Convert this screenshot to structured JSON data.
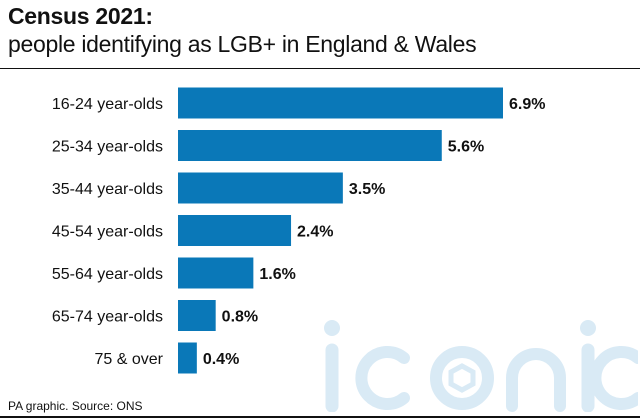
{
  "title": "Census 2021:",
  "subtitle": "people identifying as LGB+ in England & Wales",
  "source": "PA graphic. Source: ONS",
  "watermark": "iconic",
  "colors": {
    "bar": "#0a78b8",
    "text": "#111111",
    "watermark": "#d9eaf5"
  },
  "chart_data": {
    "type": "bar",
    "orientation": "horizontal",
    "categories": [
      "16-24 year-olds",
      "25-34 year-olds",
      "35-44 year-olds",
      "45-54 year-olds",
      "55-64 year-olds",
      "65-74 year-olds",
      "75 & over"
    ],
    "values": [
      6.9,
      5.6,
      3.5,
      2.4,
      1.6,
      0.8,
      0.4
    ],
    "data_labels": [
      "6.9%",
      "5.6%",
      "3.5%",
      "2.4%",
      "1.6%",
      "0.8%",
      "0.4%"
    ],
    "unit": "%",
    "title": "Census 2021:",
    "subtitle": "people identifying as LGB+ in England & Wales",
    "xlabel": "",
    "ylabel": "",
    "xlim": [
      0,
      6.9
    ],
    "grid": false,
    "legend": "none"
  }
}
